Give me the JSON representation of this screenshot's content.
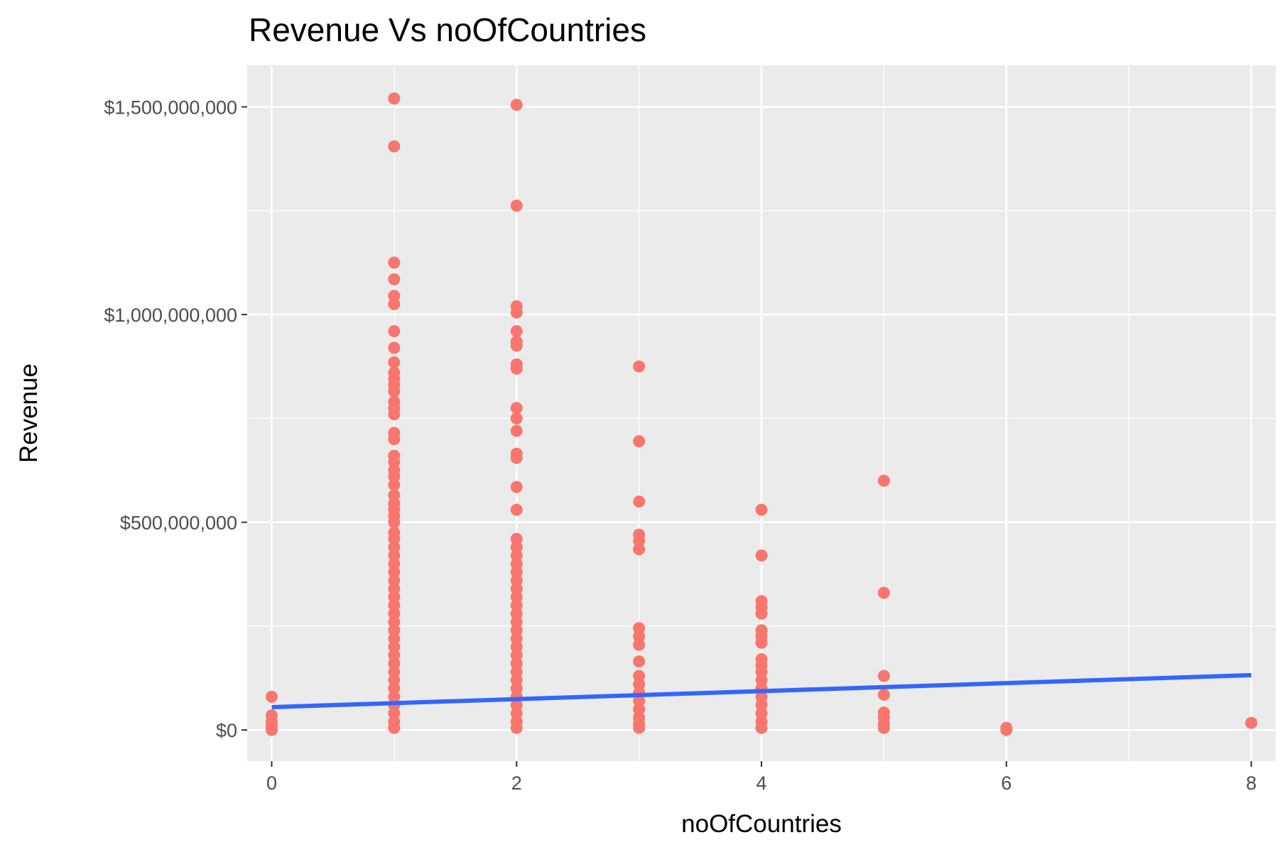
{
  "chart_data": {
    "type": "scatter",
    "title": "Revenue Vs noOfCountries",
    "xlabel": "noOfCountries",
    "ylabel": "Revenue",
    "xlim": [
      -0.2,
      8.2
    ],
    "ylim": [
      -75000000,
      1600000000
    ],
    "x_ticks": [
      0,
      2,
      4,
      6,
      8
    ],
    "x_tick_labels": [
      "0",
      "2",
      "4",
      "6",
      "8"
    ],
    "y_ticks": [
      0,
      500000000,
      1000000000,
      1500000000
    ],
    "y_tick_labels": [
      "$0",
      "$500,000,000",
      "$1,000,000,000",
      "$1,500,000,000"
    ],
    "grid": true,
    "legend": "none",
    "colors": {
      "panel": "#ebebeb",
      "grid": "#ffffff",
      "points": "#f8766d",
      "fit_line": "#3366ff"
    },
    "series": [
      {
        "points": [
          [
            0,
            0
          ],
          [
            0,
            5000000
          ],
          [
            0,
            10000000
          ],
          [
            0,
            20000000
          ],
          [
            0,
            35000000
          ],
          [
            0,
            80000000
          ],
          [
            1,
            1520000000
          ],
          [
            1,
            1405000000
          ],
          [
            1,
            1125000000
          ],
          [
            1,
            1085000000
          ],
          [
            1,
            1045000000
          ],
          [
            1,
            1025000000
          ],
          [
            1,
            960000000
          ],
          [
            1,
            920000000
          ],
          [
            1,
            885000000
          ],
          [
            1,
            860000000
          ],
          [
            1,
            845000000
          ],
          [
            1,
            830000000
          ],
          [
            1,
            815000000
          ],
          [
            1,
            790000000
          ],
          [
            1,
            775000000
          ],
          [
            1,
            760000000
          ],
          [
            1,
            715000000
          ],
          [
            1,
            700000000
          ],
          [
            1,
            660000000
          ],
          [
            1,
            645000000
          ],
          [
            1,
            625000000
          ],
          [
            1,
            610000000
          ],
          [
            1,
            590000000
          ],
          [
            1,
            565000000
          ],
          [
            1,
            545000000
          ],
          [
            1,
            530000000
          ],
          [
            1,
            515000000
          ],
          [
            1,
            500000000
          ],
          [
            1,
            475000000
          ],
          [
            1,
            460000000
          ],
          [
            1,
            440000000
          ],
          [
            1,
            420000000
          ],
          [
            1,
            400000000
          ],
          [
            1,
            380000000
          ],
          [
            1,
            360000000
          ],
          [
            1,
            340000000
          ],
          [
            1,
            320000000
          ],
          [
            1,
            300000000
          ],
          [
            1,
            280000000
          ],
          [
            1,
            260000000
          ],
          [
            1,
            240000000
          ],
          [
            1,
            220000000
          ],
          [
            1,
            200000000
          ],
          [
            1,
            180000000
          ],
          [
            1,
            160000000
          ],
          [
            1,
            140000000
          ],
          [
            1,
            120000000
          ],
          [
            1,
            100000000
          ],
          [
            1,
            80000000
          ],
          [
            1,
            60000000
          ],
          [
            1,
            40000000
          ],
          [
            1,
            20000000
          ],
          [
            1,
            5000000
          ],
          [
            2,
            1505000000
          ],
          [
            2,
            1262000000
          ],
          [
            2,
            1020000000
          ],
          [
            2,
            1005000000
          ],
          [
            2,
            960000000
          ],
          [
            2,
            935000000
          ],
          [
            2,
            925000000
          ],
          [
            2,
            880000000
          ],
          [
            2,
            870000000
          ],
          [
            2,
            775000000
          ],
          [
            2,
            750000000
          ],
          [
            2,
            720000000
          ],
          [
            2,
            665000000
          ],
          [
            2,
            655000000
          ],
          [
            2,
            585000000
          ],
          [
            2,
            530000000
          ],
          [
            2,
            460000000
          ],
          [
            2,
            440000000
          ],
          [
            2,
            420000000
          ],
          [
            2,
            400000000
          ],
          [
            2,
            380000000
          ],
          [
            2,
            360000000
          ],
          [
            2,
            340000000
          ],
          [
            2,
            320000000
          ],
          [
            2,
            300000000
          ],
          [
            2,
            280000000
          ],
          [
            2,
            260000000
          ],
          [
            2,
            240000000
          ],
          [
            2,
            220000000
          ],
          [
            2,
            200000000
          ],
          [
            2,
            180000000
          ],
          [
            2,
            160000000
          ],
          [
            2,
            140000000
          ],
          [
            2,
            120000000
          ],
          [
            2,
            100000000
          ],
          [
            2,
            80000000
          ],
          [
            2,
            60000000
          ],
          [
            2,
            40000000
          ],
          [
            2,
            20000000
          ],
          [
            2,
            5000000
          ],
          [
            3,
            875000000
          ],
          [
            3,
            695000000
          ],
          [
            3,
            550000000
          ],
          [
            3,
            470000000
          ],
          [
            3,
            455000000
          ],
          [
            3,
            435000000
          ],
          [
            3,
            245000000
          ],
          [
            3,
            225000000
          ],
          [
            3,
            205000000
          ],
          [
            3,
            165000000
          ],
          [
            3,
            130000000
          ],
          [
            3,
            110000000
          ],
          [
            3,
            90000000
          ],
          [
            3,
            70000000
          ],
          [
            3,
            50000000
          ],
          [
            3,
            30000000
          ],
          [
            3,
            15000000
          ],
          [
            3,
            5000000
          ],
          [
            4,
            530000000
          ],
          [
            4,
            420000000
          ],
          [
            4,
            310000000
          ],
          [
            4,
            295000000
          ],
          [
            4,
            280000000
          ],
          [
            4,
            240000000
          ],
          [
            4,
            225000000
          ],
          [
            4,
            210000000
          ],
          [
            4,
            170000000
          ],
          [
            4,
            155000000
          ],
          [
            4,
            140000000
          ],
          [
            4,
            120000000
          ],
          [
            4,
            100000000
          ],
          [
            4,
            80000000
          ],
          [
            4,
            60000000
          ],
          [
            4,
            40000000
          ],
          [
            4,
            20000000
          ],
          [
            4,
            5000000
          ],
          [
            5,
            600000000
          ],
          [
            5,
            330000000
          ],
          [
            5,
            130000000
          ],
          [
            5,
            85000000
          ],
          [
            5,
            42000000
          ],
          [
            5,
            30000000
          ],
          [
            5,
            15000000
          ],
          [
            5,
            5000000
          ],
          [
            6,
            5000000
          ],
          [
            6,
            0
          ],
          [
            8,
            17000000
          ]
        ]
      }
    ],
    "fit_line": {
      "x": [
        0,
        8
      ],
      "y": [
        55000000,
        132000000
      ]
    }
  }
}
